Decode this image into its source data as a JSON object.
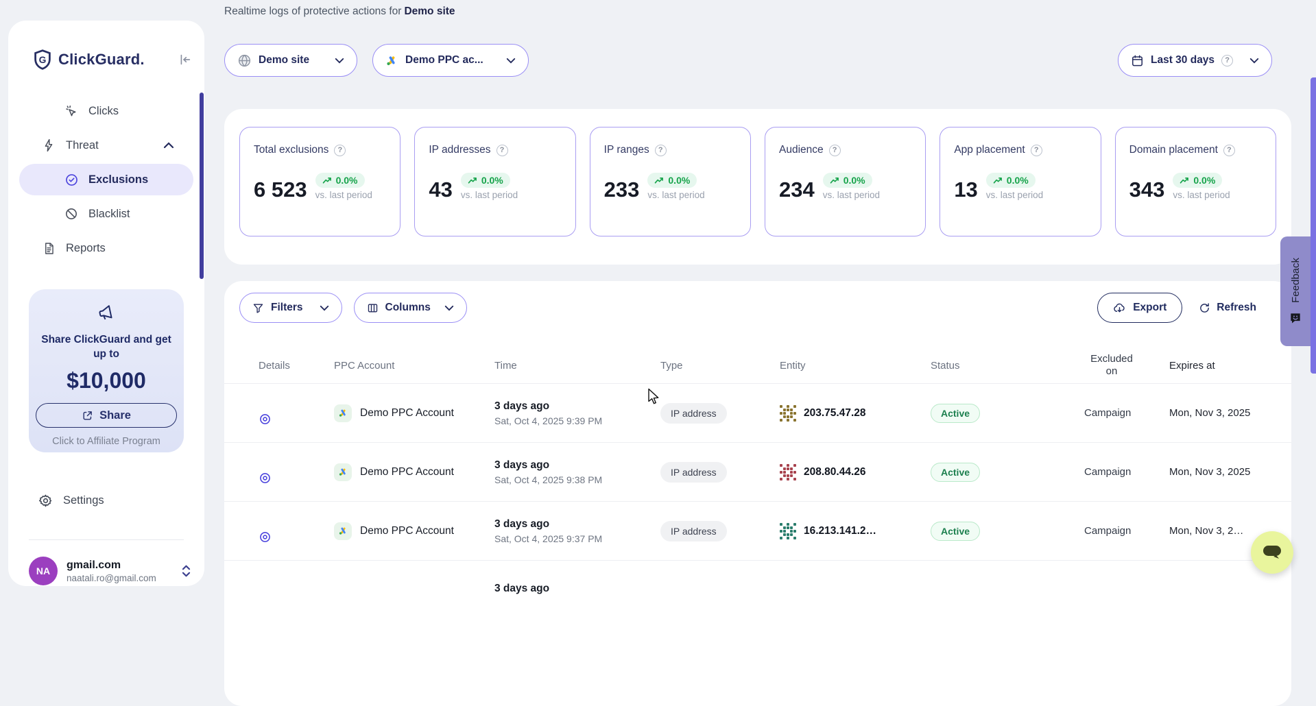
{
  "colors": {
    "accent": "#4b43dd",
    "border_purple": "#9a8ef5",
    "navy": "#232a5c",
    "green": "#16a34a",
    "green_bg": "#e6f7ee",
    "active_green": "#1c7f4e",
    "feedback_bg": "#8f8bca",
    "chat_bg": "#e9f59d",
    "avatar_bg": "#9b3fbf",
    "scrollbar": "#7a71e3"
  },
  "sidebar": {
    "logo_text": "ClickGuard.",
    "nav": [
      {
        "label": "Clicks"
      },
      {
        "label": "Threat"
      },
      {
        "label": "Exclusions"
      },
      {
        "label": "Blacklist"
      },
      {
        "label": "Reports"
      }
    ],
    "promo": {
      "line1": "Share ClickGuard and get up to",
      "amount": "$10,000",
      "share_label": "Share",
      "affiliate_label": "Click to Affiliate Program"
    },
    "settings_label": "Settings",
    "account": {
      "initials": "NA",
      "name": "gmail.com",
      "email": "naatali.ro@gmail.com"
    }
  },
  "header": {
    "subtitle_prefix": "Realtime logs of protective actions for",
    "subtitle_bold": "Demo site",
    "site_selector": "Demo site",
    "ppc_selector": "Demo PPC ac...",
    "date_selector": "Last 30 days"
  },
  "stats": [
    {
      "label": "Total exclusions",
      "value": "6 523",
      "delta": "0.0%",
      "caption": "vs. last period"
    },
    {
      "label": "IP addresses",
      "value": "43",
      "delta": "0.0%",
      "caption": "vs. last period"
    },
    {
      "label": "IP ranges",
      "value": "233",
      "delta": "0.0%",
      "caption": "vs. last period"
    },
    {
      "label": "Audience",
      "value": "234",
      "delta": "0.0%",
      "caption": "vs. last period"
    },
    {
      "label": "App placement",
      "value": "13",
      "delta": "0.0%",
      "caption": "vs. last period"
    },
    {
      "label": "Domain placement",
      "value": "343",
      "delta": "0.0%",
      "caption": "vs. last period"
    }
  ],
  "toolbar": {
    "filters": "Filters",
    "columns": "Columns",
    "export": "Export",
    "refresh": "Refresh"
  },
  "table": {
    "headers": [
      "Details",
      "PPC Account",
      "Time",
      "Type",
      "Entity",
      "Status",
      "Excluded on",
      "Expires at"
    ],
    "rows": [
      {
        "account": "Demo PPC Account",
        "time_relative": "3 days ago",
        "time_full": "Sat, Oct 4, 2025 9:39 PM",
        "type": "IP address",
        "entity": "203.75.47.28",
        "entity_color": "#8a7430",
        "status": "Active",
        "excluded_on": "Campaign",
        "expires": "Mon, Nov 3, 2025"
      },
      {
        "account": "Demo PPC Account",
        "time_relative": "3 days ago",
        "time_full": "Sat, Oct 4, 2025 9:38 PM",
        "type": "IP address",
        "entity": "208.80.44.26",
        "entity_color": "#a8434e",
        "status": "Active",
        "excluded_on": "Campaign",
        "expires": "Mon, Nov 3, 2025"
      },
      {
        "account": "Demo PPC Account",
        "time_relative": "3 days ago",
        "time_full": "Sat, Oct 4, 2025 9:37 PM",
        "type": "IP address",
        "entity": "16.213.141.2…",
        "entity_color": "#2a7d6c",
        "status": "Active",
        "excluded_on": "Campaign",
        "expires": "Mon, Nov 3, 2…"
      },
      {
        "account": "",
        "time_relative": "3 days ago",
        "time_full": "",
        "type": "",
        "entity": "",
        "entity_color": "",
        "status": "",
        "excluded_on": "",
        "expires": "",
        "partial": true
      }
    ]
  },
  "feedback_label": "Feedback"
}
